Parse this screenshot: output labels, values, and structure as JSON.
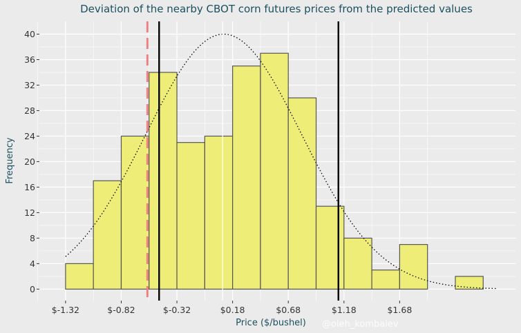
{
  "chart_data": {
    "type": "bar",
    "title": "Deviation of the nearby CBOT corn futures prices from the predicted values",
    "xlabel": "Price ($/bushel)",
    "ylabel": "Frequency",
    "watermark": "@oleh_kombaiev",
    "bin_width": 0.25,
    "bin_start": -1.32,
    "bins": [
      {
        "from": -1.32,
        "to": -1.07,
        "count": 4
      },
      {
        "from": -1.07,
        "to": -0.82,
        "count": 17
      },
      {
        "from": -0.82,
        "to": -0.57,
        "count": 24
      },
      {
        "from": -0.57,
        "to": -0.32,
        "count": 34
      },
      {
        "from": -0.32,
        "to": -0.07,
        "count": 23
      },
      {
        "from": -0.07,
        "to": 0.18,
        "count": 24
      },
      {
        "from": 0.18,
        "to": 0.43,
        "count": 35
      },
      {
        "from": 0.43,
        "to": 0.68,
        "count": 37
      },
      {
        "from": 0.68,
        "to": 0.93,
        "count": 30
      },
      {
        "from": 0.93,
        "to": 1.18,
        "count": 13
      },
      {
        "from": 1.18,
        "to": 1.43,
        "count": 8
      },
      {
        "from": 1.43,
        "to": 1.68,
        "count": 3
      },
      {
        "from": 1.68,
        "to": 1.93,
        "count": 7
      },
      {
        "from": 1.93,
        "to": 2.18,
        "count": 0
      },
      {
        "from": 2.18,
        "to": 2.43,
        "count": 2
      }
    ],
    "x_ticks": [
      -1.32,
      -0.82,
      -0.32,
      0.18,
      0.68,
      1.18,
      1.68
    ],
    "x_tick_labels": [
      "$-1.32",
      "$-0.82",
      "$-0.32",
      "$0.18",
      "$0.68",
      "$1.18",
      "$1.68"
    ],
    "y_ticks": [
      0,
      4,
      8,
      12,
      16,
      20,
      24,
      28,
      32,
      36,
      40
    ],
    "xlim": [
      -1.555,
      2.72
    ],
    "ylim": [
      -1.8,
      42
    ],
    "normal_curve": {
      "mean": 0.1,
      "sd": 0.7,
      "peak": 40,
      "x_from": -1.32,
      "x_to": 2.55,
      "style": "dotted"
    },
    "reference_lines": [
      {
        "name": "lower-bound-line",
        "x": -0.48,
        "color": "#000000",
        "style": "solid"
      },
      {
        "name": "upper-bound-line",
        "x": 1.13,
        "color": "#000000",
        "style": "solid"
      },
      {
        "name": "mean-line",
        "x": 0.09,
        "color": "#ffffff",
        "style": "solid"
      },
      {
        "name": "current-value-line",
        "x": -0.585,
        "color": "#f08080",
        "style": "dashed"
      }
    ],
    "colors": {
      "bar_fill": "#eeed77",
      "bar_stroke": "#555555",
      "title": "#1b4f5f",
      "panel": "#ebebeb",
      "grid": "#ffffff"
    }
  }
}
